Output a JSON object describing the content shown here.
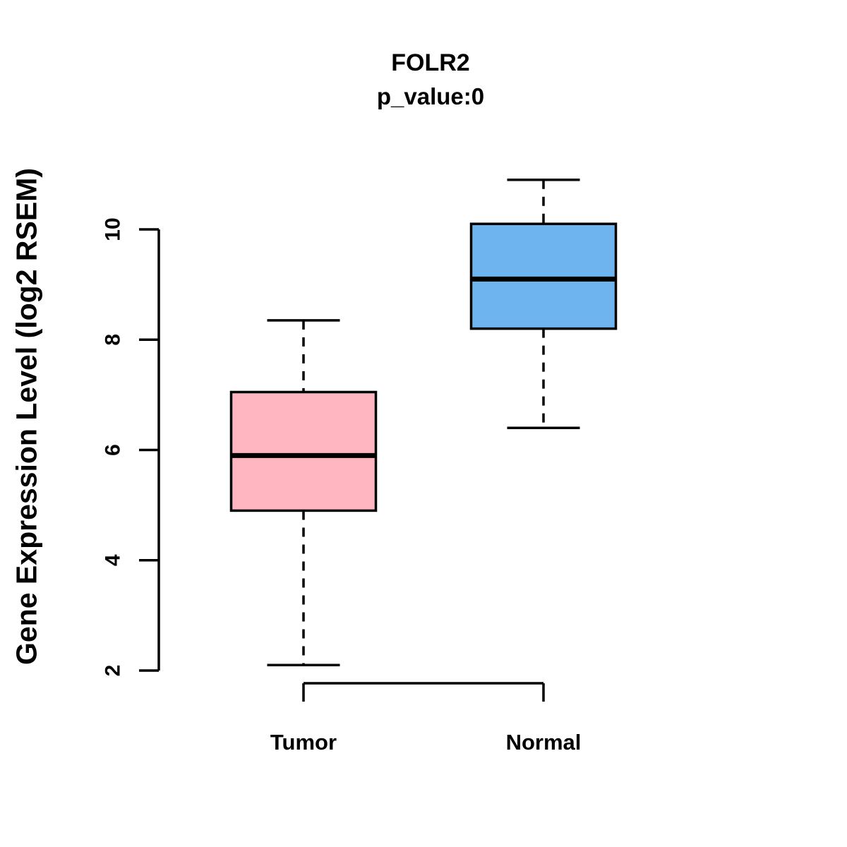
{
  "title": "FOLR2",
  "subtitle": "p_value:0",
  "ylabel": "Gene Expression Level (log2 RSEM)",
  "chart_data": {
    "type": "boxplot",
    "title": "FOLR2",
    "subtitle": "p_value:0",
    "xlabel": "",
    "ylabel": "Gene Expression Level (log2 RSEM)",
    "categories": [
      "Tumor",
      "Normal"
    ],
    "yticks": [
      2,
      4,
      6,
      8,
      10
    ],
    "ylim": [
      1.8,
      11.0
    ],
    "grid": false,
    "legend": false,
    "background": "#FFFFFF",
    "stroke_color": "#000000",
    "series": [
      {
        "name": "Tumor",
        "color": "#FFB6C1",
        "lower_whisker": 2.1,
        "q1": 4.9,
        "median": 5.9,
        "q3": 7.05,
        "upper_whisker": 8.35
      },
      {
        "name": "Normal",
        "color": "#6EB5F0",
        "lower_whisker": 6.4,
        "q1": 8.2,
        "median": 9.1,
        "q3": 10.1,
        "upper_whisker": 10.9
      }
    ]
  }
}
